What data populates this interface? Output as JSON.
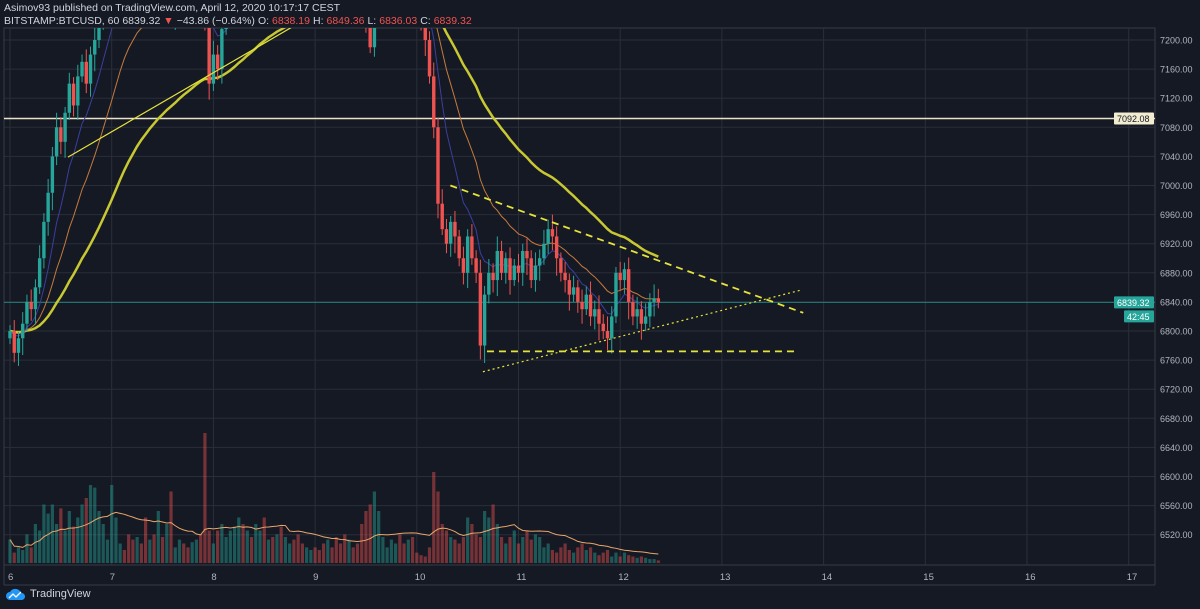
{
  "header": {
    "line1": "Asimov93 published on TradingView.com, April 12, 2020 10:17:17 CEST",
    "symbol": "BITSTAMP:BTCUSD, 60",
    "last": "6839.32",
    "arrow": "▼",
    "change": "−43.86 (−0.64%)",
    "o_label": "O:",
    "o": "6838.19",
    "h_label": "H:",
    "h": "6849.36",
    "l_label": "L:",
    "l": "6836.03",
    "c_label": "C:",
    "c": "6839.32"
  },
  "footer": {
    "brand": "TradingView",
    "logo_icon": "tradingview-cloud-icon"
  },
  "colors": {
    "background": "#151924",
    "up": "#26a69a",
    "down": "#ef5350",
    "grid": "#2a2e39",
    "ma_slow": "#c8c832",
    "ma_mid": "#c77a3c",
    "ma_fast": "#3b3f9e",
    "trend": "#e6e23c",
    "hline": "#e8e3c8",
    "price_label": "#26a69a"
  },
  "chart_data": {
    "type": "candlestick",
    "interval": "60",
    "x_ticks": [
      "6",
      "7",
      "8",
      "9",
      "10",
      "11",
      "12",
      "13",
      "14",
      "15",
      "16",
      "17"
    ],
    "y_ticks": [
      "7200.00",
      "7160.00",
      "7120.00",
      "7080.00",
      "7040.00",
      "7000.00",
      "6960.00",
      "6920.00",
      "6880.00",
      "6840.00",
      "6800.00",
      "6760.00",
      "6720.00",
      "6680.00",
      "6640.00",
      "6600.00",
      "6560.00",
      "6520.00"
    ],
    "ylim": [
      6470,
      7225
    ],
    "xlim_days": [
      5.97,
      17.35
    ],
    "start_day": 6,
    "first_open": 6790,
    "closes": [
      6800,
      6770,
      6790,
      6810,
      6840,
      6830,
      6860,
      6900,
      6950,
      6990,
      7040,
      7080,
      7060,
      7100,
      7140,
      7110,
      7150,
      7170,
      7140,
      7180,
      7200,
      7230,
      7260,
      7280,
      7300,
      7330,
      7350,
      7340,
      7320,
      7300,
      7310,
      7280,
      7260,
      7270,
      7250,
      7260,
      7240,
      7250,
      7230,
      7240,
      7260,
      7250,
      7240,
      7250,
      7260,
      7250,
      7230,
      7140,
      7180,
      7160,
      7215,
      7240,
      7260,
      7280,
      7300,
      7290,
      7310,
      7300,
      7320,
      7330,
      7310,
      7320,
      7300,
      7310,
      7290,
      7300,
      7320,
      7310,
      7300,
      7290,
      7300,
      7310,
      7300,
      7290,
      7280,
      7300,
      7290,
      7280,
      7270,
      7260,
      7280,
      7270,
      7250,
      7240,
      7230,
      7190,
      7240,
      7260,
      7270,
      7280,
      7290,
      7300,
      7290,
      7280,
      7290,
      7270,
      7260,
      7230,
      7200,
      7150,
      7080,
      6975,
      6940,
      6920,
      6950,
      6930,
      6900,
      6880,
      6930,
      6900,
      6880,
      6780,
      6850,
      6880,
      6870,
      6910,
      6880,
      6900,
      6870,
      6890,
      6880,
      6910,
      6900,
      6870,
      6890,
      6900,
      6920,
      6940,
      6930,
      6900,
      6880,
      6870,
      6850,
      6860,
      6840,
      6830,
      6850,
      6820,
      6830,
      6810,
      6800,
      6790,
      6820,
      6880,
      6870,
      6885,
      6840,
      6820,
      6830,
      6810,
      6820,
      6840,
      6845,
      6839.32
    ],
    "volumes": [
      18,
      8,
      12,
      10,
      22,
      12,
      30,
      25,
      45,
      38,
      45,
      30,
      42,
      25,
      40,
      28,
      35,
      45,
      50,
      60,
      58,
      40,
      30,
      18,
      60,
      35,
      15,
      10,
      22,
      18,
      20,
      15,
      35,
      18,
      22,
      40,
      20,
      30,
      55,
      12,
      18,
      15,
      12,
      16,
      18,
      22,
      100,
      25,
      15,
      25,
      30,
      20,
      25,
      28,
      35,
      30,
      25,
      20,
      30,
      25,
      35,
      18,
      20,
      22,
      28,
      20,
      15,
      18,
      22,
      15,
      12,
      10,
      12,
      10,
      15,
      18,
      12,
      20,
      15,
      22,
      18,
      12,
      15,
      30,
      40,
      45,
      55,
      40,
      20,
      12,
      18,
      15,
      22,
      15,
      18,
      20,
      8,
      6,
      5,
      12,
      70,
      55,
      30,
      25,
      20,
      18,
      15,
      20,
      35,
      30,
      22,
      20,
      40,
      35,
      45,
      30,
      20,
      15,
      20,
      25,
      15,
      20,
      25,
      18,
      22,
      20,
      12,
      15,
      10,
      8,
      12,
      15,
      10,
      8,
      12,
      15,
      10,
      12,
      8,
      6,
      8,
      10,
      5,
      8,
      5,
      8,
      6,
      5,
      4,
      5,
      4,
      3,
      3,
      2
    ],
    "current_price": 6839.32,
    "countdown": "42:45",
    "horizontal_level": {
      "price": 7092.08,
      "label": "7092.08"
    },
    "moving_averages": [
      {
        "period": 50,
        "style": "thick"
      },
      {
        "period": 20,
        "style": "thin"
      },
      {
        "period": 9,
        "style": "faint"
      }
    ],
    "volume_ma_period": 20,
    "drawings": [
      {
        "kind": "trendline",
        "style": "solid",
        "from": [
          6.57,
          7039
        ],
        "to": [
          8.85,
          7224
        ]
      },
      {
        "kind": "trendline",
        "style": "dashed",
        "from": [
          10.33,
          7000
        ],
        "to": [
          13.8,
          6825
        ]
      },
      {
        "kind": "trendline",
        "style": "dotted",
        "from": [
          10.65,
          6744
        ],
        "to": [
          13.77,
          6856
        ]
      },
      {
        "kind": "trendline",
        "style": "dashed",
        "from": [
          10.69,
          6772
        ],
        "to": [
          13.72,
          6772
        ]
      }
    ]
  }
}
